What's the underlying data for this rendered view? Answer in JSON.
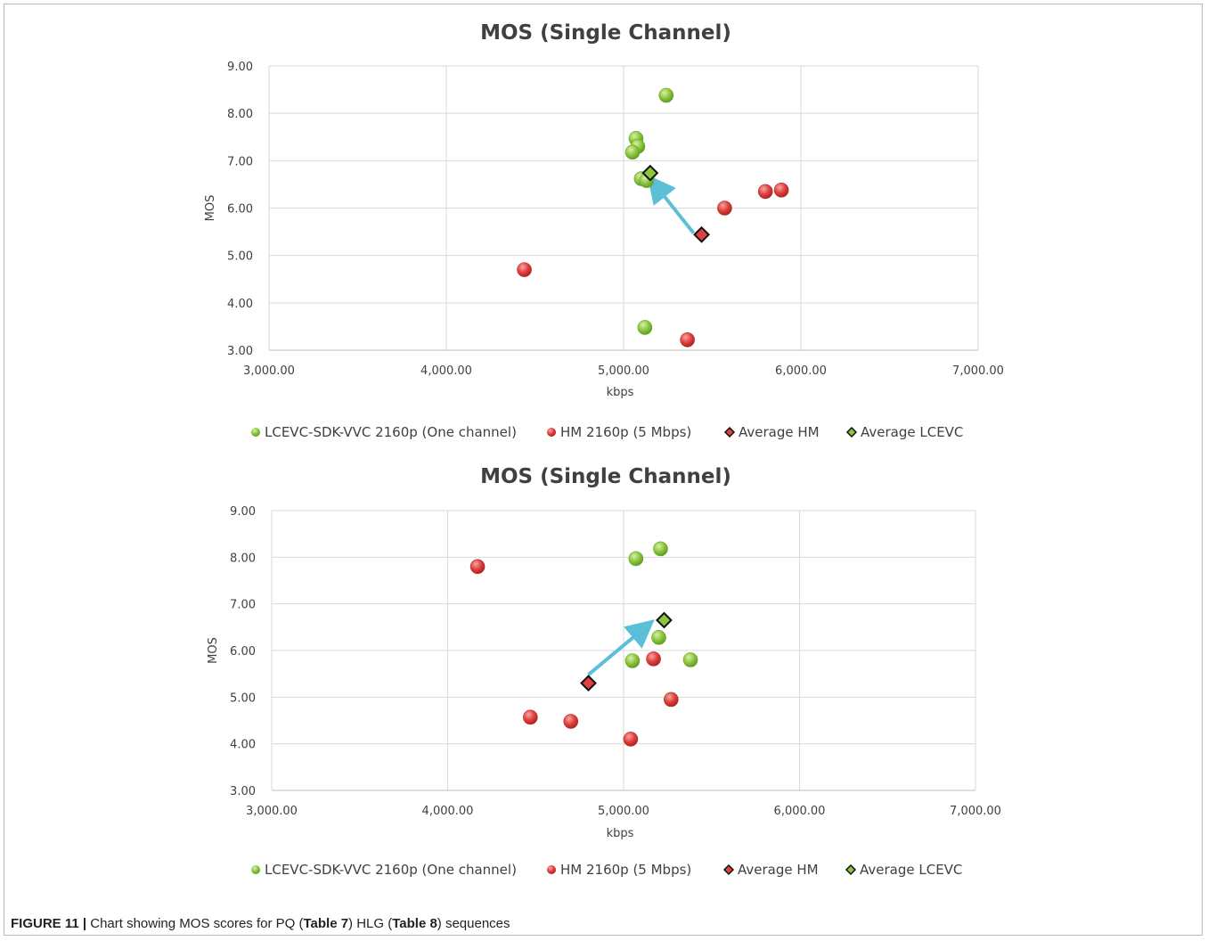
{
  "caption": {
    "label": "FIGURE 11 |",
    "text_1": " Chart showing MOS scores for PQ (",
    "ref_1": "Table 7",
    "text_2": ") HLG (",
    "ref_2": "Table 8",
    "text_3": ") sequences"
  },
  "colors": {
    "lcevc": "#8cc63f",
    "hm": "#e0403f",
    "average_hm": "#e0403f",
    "average_lcevc": "#8cc63f",
    "arrow": "#5bc0d7",
    "grid": "#d9d9d9",
    "text": "#404040"
  },
  "chart_data": [
    {
      "type": "scatter",
      "title": "MOS (Single Channel)",
      "xlabel": "kbps",
      "ylabel": "MOS",
      "xlim": [
        3000,
        7000
      ],
      "ylim": [
        3,
        9
      ],
      "x_ticks": [
        "3,000.00",
        "4,000.00",
        "5,000.00",
        "6,000.00",
        "7,000.00"
      ],
      "y_ticks": [
        "3.00",
        "4.00",
        "5.00",
        "6.00",
        "7.00",
        "8.00",
        "9.00"
      ],
      "grid": true,
      "legend_position": "bottom",
      "series": [
        {
          "name": "LCEVC-SDK-VVC 2160p (One channel)",
          "marker": "circle",
          "color_key": "lcevc",
          "points": [
            [
              5240,
              8.38
            ],
            [
              5070,
              7.47
            ],
            [
              5080,
              7.3
            ],
            [
              5050,
              7.18
            ],
            [
              5100,
              6.62
            ],
            [
              5130,
              6.58
            ],
            [
              5120,
              3.48
            ]
          ]
        },
        {
          "name": "HM  2160p (5 Mbps)",
          "marker": "circle",
          "color_key": "hm",
          "points": [
            [
              5890,
              6.38
            ],
            [
              5800,
              6.35
            ],
            [
              5570,
              6.0
            ],
            [
              4440,
              4.7
            ],
            [
              5360,
              3.22
            ]
          ]
        },
        {
          "name": "Average HM",
          "marker": "diamond",
          "color_key": "average_hm",
          "points": [
            [
              5440,
              5.44
            ]
          ]
        },
        {
          "name": "Average LCEVC",
          "marker": "diamond",
          "color_key": "average_lcevc",
          "points": [
            [
              5150,
              6.74
            ]
          ]
        }
      ],
      "annotations": [
        {
          "type": "arrow",
          "from": [
            5395,
            5.47
          ],
          "to": [
            5170,
            6.53
          ]
        }
      ]
    },
    {
      "type": "scatter",
      "title": "MOS (Single Channel)",
      "xlabel": "kbps",
      "ylabel": "MOS",
      "xlim": [
        3000,
        7000
      ],
      "ylim": [
        3,
        9
      ],
      "x_ticks": [
        "3,000.00",
        "4,000.00",
        "5,000.00",
        "6,000.00",
        "7,000.00"
      ],
      "y_ticks": [
        "3.00",
        "4.00",
        "5.00",
        "6.00",
        "7.00",
        "8.00",
        "9.00"
      ],
      "grid": true,
      "legend_position": "bottom",
      "series": [
        {
          "name": "LCEVC-SDK-VVC 2160p (One channel)",
          "marker": "circle",
          "color_key": "lcevc",
          "points": [
            [
              5210,
              8.18
            ],
            [
              5070,
              7.97
            ],
            [
              5200,
              6.28
            ],
            [
              5050,
              5.78
            ],
            [
              5380,
              5.8
            ]
          ]
        },
        {
          "name": "HM  2160p (5 Mbps)",
          "marker": "circle",
          "color_key": "hm",
          "points": [
            [
              4170,
              7.8
            ],
            [
              5170,
              5.82
            ],
            [
              4470,
              4.57
            ],
            [
              4700,
              4.48
            ],
            [
              5270,
              4.95
            ],
            [
              5040,
              4.1
            ]
          ]
        },
        {
          "name": "Average HM",
          "marker": "diamond",
          "color_key": "average_hm",
          "points": [
            [
              4800,
              5.3
            ]
          ]
        },
        {
          "name": "Average LCEVC",
          "marker": "diamond",
          "color_key": "average_lcevc",
          "points": [
            [
              5230,
              6.65
            ]
          ]
        }
      ],
      "annotations": [
        {
          "type": "arrow",
          "from": [
            4800,
            5.48
          ],
          "to": [
            5130,
            6.52
          ]
        }
      ]
    }
  ]
}
